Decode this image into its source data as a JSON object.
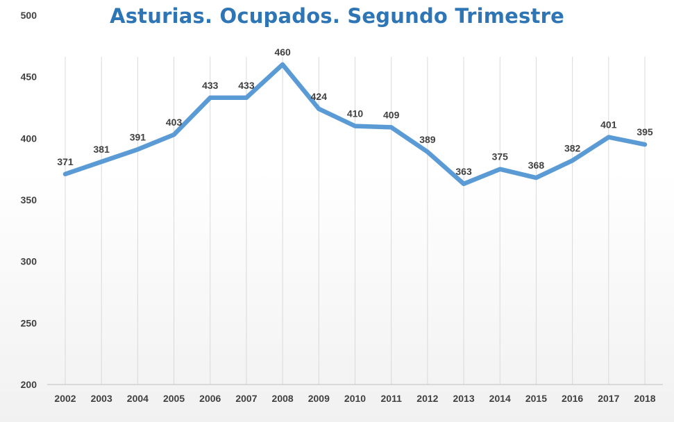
{
  "chart_data": {
    "type": "line",
    "title": "Asturias. Ocupados. Segundo Trimestre",
    "xlabel": "",
    "ylabel": "",
    "x": [
      "2002",
      "2003",
      "2004",
      "2005",
      "2006",
      "2007",
      "2008",
      "2009",
      "2010",
      "2011",
      "2012",
      "2013",
      "2014",
      "2015",
      "2016",
      "2017",
      "2018"
    ],
    "series": [
      {
        "values": [
          371,
          381,
          391,
          403,
          433,
          433,
          460,
          424,
          410,
          409,
          389,
          363,
          375,
          368,
          382,
          401,
          395
        ],
        "color": "#5b9bd5"
      }
    ],
    "data_labels": [
      "371",
      "381",
      "391",
      "403",
      "433",
      "433",
      "460",
      "424",
      "410",
      "409",
      "389",
      "363",
      "375",
      "368",
      "382",
      "401",
      "395"
    ],
    "ylim": [
      200,
      500
    ],
    "yticks": [
      200,
      250,
      300,
      350,
      400,
      450,
      500
    ],
    "grid": "vertical",
    "legend": "none",
    "colors": {
      "title": "#2e75b6",
      "line": "#5b9bd5",
      "grid": "#d9d9d9",
      "axis": "#bfbfbf",
      "labels": "#404040"
    }
  }
}
